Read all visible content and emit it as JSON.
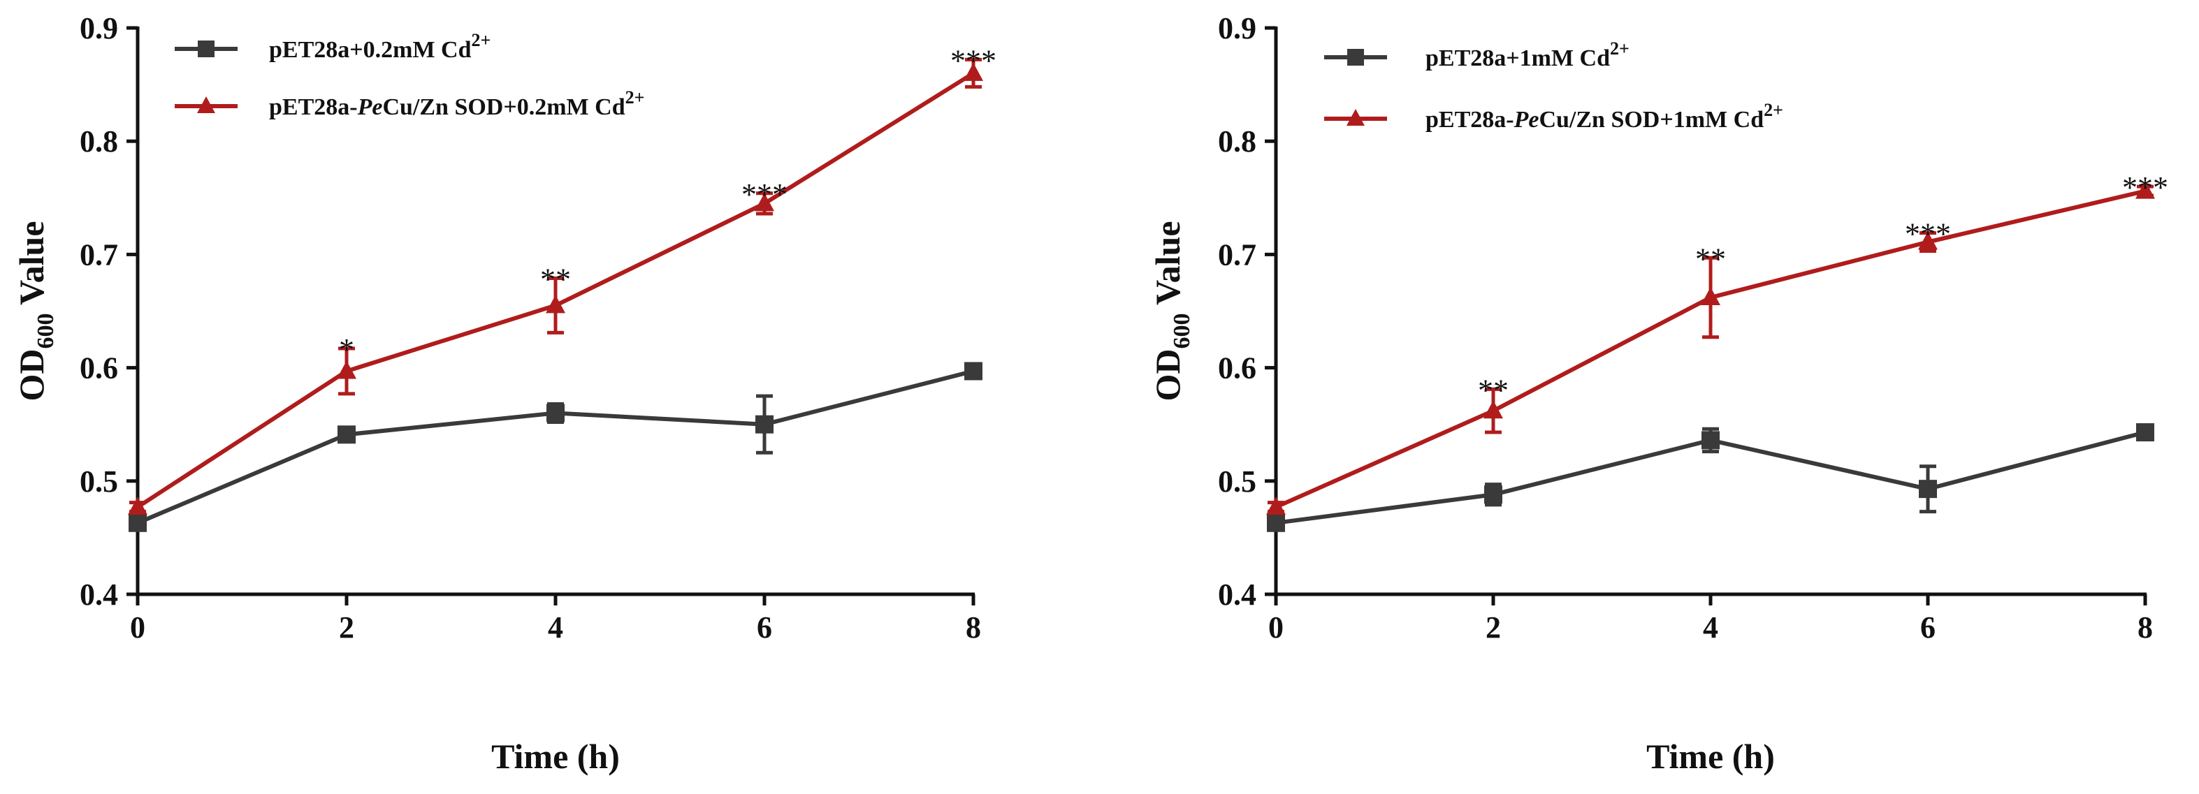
{
  "chart_data": [
    {
      "type": "line",
      "title": "",
      "xlabel": "Time (h)",
      "ylabel": {
        "base": "OD",
        "sub": "600",
        "rest": " Value"
      },
      "x": [
        0,
        2,
        4,
        6,
        8
      ],
      "xlim": [
        0,
        8
      ],
      "ylim": [
        0.4,
        0.9
      ],
      "x_ticks": [
        "0",
        "2",
        "4",
        "6",
        "8"
      ],
      "y_ticks": [
        "0.4",
        "0.5",
        "0.6",
        "0.7",
        "0.8",
        "0.9"
      ],
      "grid": false,
      "legend_position": "top-left",
      "series": [
        {
          "name": "pET28a+0.2mM Cd2+",
          "legend": {
            "pre": "pET28a+0.2mM Cd",
            "italic": "",
            "post": "",
            "sup": "2+"
          },
          "color": "#3a3a3a",
          "marker": "square",
          "values": [
            0.463,
            0.541,
            0.56,
            0.55,
            0.597
          ],
          "errors": [
            0.004,
            0.006,
            0.008,
            0.025,
            0.004
          ]
        },
        {
          "name": "pET28a-PeCu/Zn SOD+0.2mM Cd2+",
          "legend": {
            "pre": "pET28a-",
            "italic": "Pe",
            "post": "Cu/Zn SOD+0.2mM Cd",
            "sup": "2+"
          },
          "color": "#b01c1c",
          "marker": "triangle",
          "values": [
            0.477,
            0.597,
            0.655,
            0.745,
            0.86
          ],
          "errors": [
            0.004,
            0.02,
            0.024,
            0.009,
            0.012
          ]
        }
      ],
      "annotations": [
        {
          "x": 2,
          "text": "*"
        },
        {
          "x": 4,
          "text": "**"
        },
        {
          "x": 6,
          "text": "***"
        },
        {
          "x": 8,
          "text": "***"
        }
      ]
    },
    {
      "type": "line",
      "title": "",
      "xlabel": "Time (h)",
      "ylabel": {
        "base": "OD",
        "sub": "600",
        "rest": " Value"
      },
      "x": [
        0,
        2,
        4,
        6,
        8
      ],
      "xlim": [
        0,
        8
      ],
      "ylim": [
        0.4,
        0.9
      ],
      "x_ticks": [
        "0",
        "2",
        "4",
        "6",
        "8"
      ],
      "y_ticks": [
        "0.4",
        "0.5",
        "0.6",
        "0.7",
        "0.8",
        "0.9"
      ],
      "grid": false,
      "legend_position": "top-left",
      "series": [
        {
          "name": "pET28a+1mM Cd2+",
          "legend": {
            "pre": "pET28a+1mM Cd",
            "italic": "",
            "post": "",
            "sup": "2+"
          },
          "color": "#3a3a3a",
          "marker": "square",
          "values": [
            0.463,
            0.488,
            0.536,
            0.493,
            0.543
          ],
          "errors": [
            0.004,
            0.009,
            0.01,
            0.02,
            0.006
          ]
        },
        {
          "name": "pET28a-PeCu/Zn SOD+1mM Cd2+",
          "legend": {
            "pre": "pET28a-",
            "italic": "Pe",
            "post": "Cu/Zn SOD+1mM Cd",
            "sup": "2+"
          },
          "color": "#b01c1c",
          "marker": "triangle",
          "values": [
            0.477,
            0.562,
            0.662,
            0.711,
            0.756
          ],
          "errors": [
            0.004,
            0.019,
            0.035,
            0.008,
            0.004
          ]
        }
      ],
      "annotations": [
        {
          "x": 2,
          "text": "**"
        },
        {
          "x": 4,
          "text": "**"
        },
        {
          "x": 6,
          "text": "***"
        },
        {
          "x": 8,
          "text": "***"
        }
      ]
    }
  ]
}
